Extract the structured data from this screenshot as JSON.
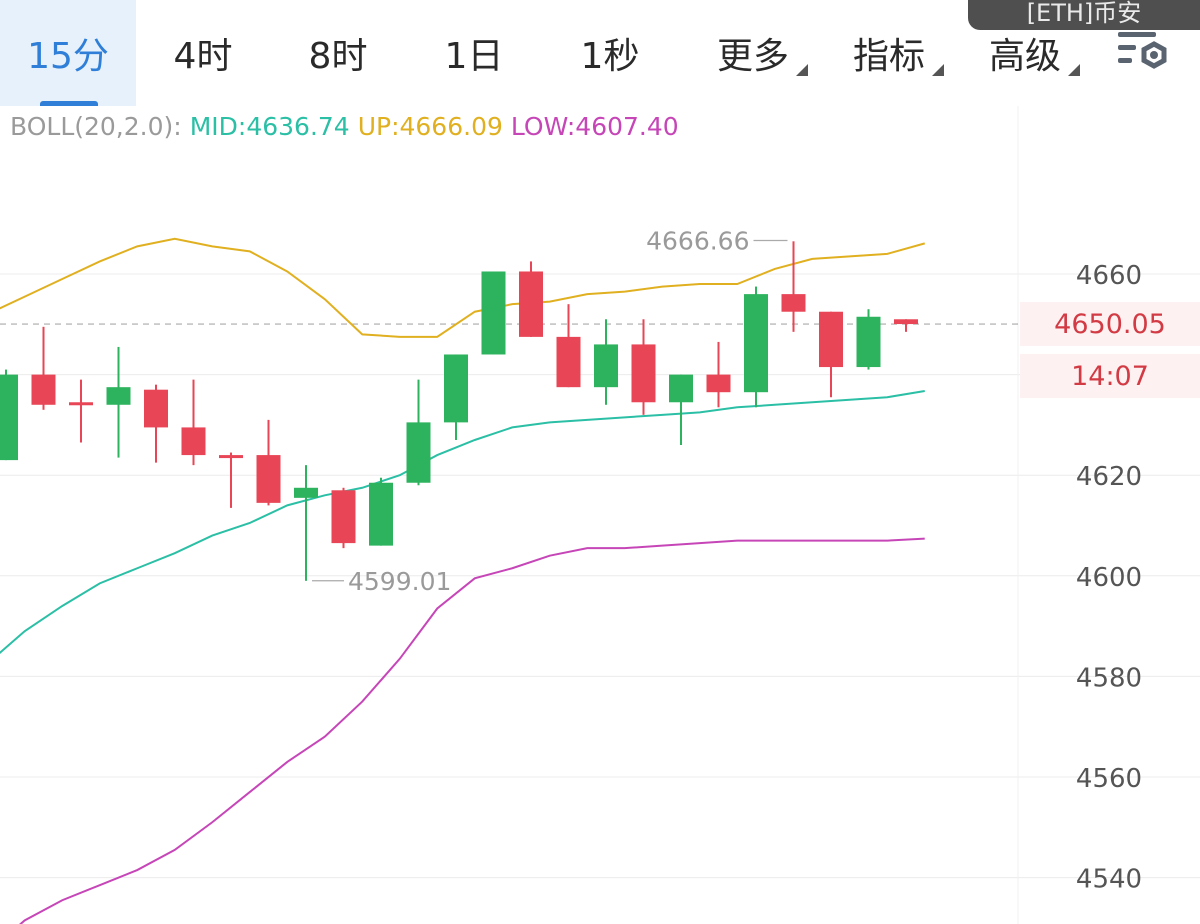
{
  "header": {
    "tabs": [
      {
        "label": "15分",
        "active": true
      },
      {
        "label": "4时"
      },
      {
        "label": "8时"
      },
      {
        "label": "1日"
      },
      {
        "label": "1秒"
      },
      {
        "label": "更多",
        "dropdown": true
      },
      {
        "label": "指标",
        "dropdown": true
      },
      {
        "label": "高级",
        "dropdown": true
      }
    ],
    "exchange_badge": "[ETH]币安",
    "settings_icon": "chart-settings-icon"
  },
  "indicator": {
    "name": "BOLL(20,2.0):",
    "mid_label": "MID:4636.74",
    "up_label": "UP:4666.09",
    "low_label": "LOW:4607.40",
    "colors": {
      "name": "#9a9a9a",
      "mid": "#2bbfa6",
      "up": "#e0b020",
      "low": "#c646b8"
    }
  },
  "current_price": {
    "value": "4650.05",
    "countdown": "14:07",
    "color": "#d23a44"
  },
  "chart_data": {
    "type": "candlestick",
    "ylim": [
      4532,
      4672
    ],
    "y_ticks": [
      4540,
      4560,
      4580,
      4600,
      4620,
      4640,
      4660
    ],
    "y_tick_labels_shown": [
      "4540",
      "4560",
      "4580",
      "4600",
      "4620",
      "",
      "4660"
    ],
    "grid": true,
    "colors": {
      "up": "#2db35d",
      "down": "#e84556",
      "grid": "#ececec"
    },
    "annotations": [
      {
        "text": "4666.66",
        "candle_index": 21,
        "value": 4666.66
      },
      {
        "text": "4599.01",
        "candle_index": 8,
        "value": 4599.01
      }
    ],
    "current_price_line": 4650.05,
    "candles": [
      {
        "o": 4623.0,
        "h": 4641.0,
        "l": 4623.0,
        "c": 4640.0
      },
      {
        "o": 4640.0,
        "h": 4649.5,
        "l": 4633.0,
        "c": 4634.0
      },
      {
        "o": 4634.5,
        "h": 4639.0,
        "l": 4626.5,
        "c": 4634.0
      },
      {
        "o": 4634.0,
        "h": 4645.5,
        "l": 4623.5,
        "c": 4637.5
      },
      {
        "o": 4637.0,
        "h": 4638.0,
        "l": 4622.5,
        "c": 4629.5
      },
      {
        "o": 4629.5,
        "h": 4639.0,
        "l": 4622.0,
        "c": 4624.0
      },
      {
        "o": 4624.0,
        "h": 4624.5,
        "l": 4613.5,
        "c": 4623.5
      },
      {
        "o": 4624.0,
        "h": 4631.0,
        "l": 4614.0,
        "c": 4614.5
      },
      {
        "o": 4615.5,
        "h": 4622.0,
        "l": 4599.0,
        "c": 4617.5
      },
      {
        "o": 4617.0,
        "h": 4617.5,
        "l": 4605.5,
        "c": 4606.5
      },
      {
        "o": 4606.0,
        "h": 4619.5,
        "l": 4606.0,
        "c": 4618.5
      },
      {
        "o": 4618.5,
        "h": 4639.0,
        "l": 4618.0,
        "c": 4630.5
      },
      {
        "o": 4630.5,
        "h": 4644.0,
        "l": 4627.0,
        "c": 4644.0
      },
      {
        "o": 4644.0,
        "h": 4660.5,
        "l": 4644.0,
        "c": 4660.5
      },
      {
        "o": 4660.5,
        "h": 4662.5,
        "l": 4647.5,
        "c": 4647.5
      },
      {
        "o": 4647.5,
        "h": 4654.0,
        "l": 4637.5,
        "c": 4637.5
      },
      {
        "o": 4637.5,
        "h": 4651.0,
        "l": 4634.0,
        "c": 4646.0
      },
      {
        "o": 4646.0,
        "h": 4651.0,
        "l": 4632.0,
        "c": 4634.5
      },
      {
        "o": 4634.5,
        "h": 4640.0,
        "l": 4626.0,
        "c": 4640.0
      },
      {
        "o": 4640.0,
        "h": 4646.5,
        "l": 4633.5,
        "c": 4636.5
      },
      {
        "o": 4636.5,
        "h": 4657.5,
        "l": 4633.5,
        "c": 4656.0
      },
      {
        "o": 4656.0,
        "h": 4666.5,
        "l": 4648.5,
        "c": 4652.5
      },
      {
        "o": 4652.5,
        "h": 4652.5,
        "l": 4635.5,
        "c": 4641.5
      },
      {
        "o": 4641.5,
        "h": 4653.0,
        "l": 4641.0,
        "c": 4651.5
      },
      {
        "o": 4651.0,
        "h": 4651.0,
        "l": 4648.5,
        "c": 4650.05
      }
    ],
    "series": [
      {
        "name": "UP",
        "color": "#e0b020",
        "values": [
          4652.0,
          4655.5,
          4659.0,
          4662.5,
          4665.5,
          4667.0,
          4665.5,
          4664.5,
          4660.5,
          4655.0,
          4648.0,
          4647.5,
          4647.5,
          4652.5,
          4654.0,
          4654.5,
          4656.0,
          4656.5,
          4657.5,
          4658.0,
          4658.0,
          4661.0,
          4663.0,
          4663.5,
          4664.0,
          4666.09
        ]
      },
      {
        "name": "MID",
        "color": "#2bbfa6",
        "values": [
          4582.5,
          4589.0,
          4594.0,
          4598.5,
          4601.5,
          4604.5,
          4608.0,
          4610.5,
          4614.0,
          4616.0,
          4617.5,
          4620.0,
          4624.0,
          4627.0,
          4629.5,
          4630.5,
          4631.0,
          4631.5,
          4632.0,
          4632.5,
          4633.5,
          4634.0,
          4634.5,
          4635.0,
          4635.5,
          4636.74
        ]
      },
      {
        "name": "LOW",
        "color": "#c646b8",
        "values": [
          4525.0,
          4531.5,
          4535.5,
          4538.5,
          4541.5,
          4545.5,
          4551.0,
          4557.0,
          4563.0,
          4568.0,
          4575.0,
          4583.5,
          4593.5,
          4599.5,
          4601.5,
          4604.0,
          4605.5,
          4605.5,
          4606.0,
          4606.5,
          4607.0,
          4607.0,
          4607.0,
          4607.0,
          4607.0,
          4607.4
        ]
      }
    ]
  }
}
